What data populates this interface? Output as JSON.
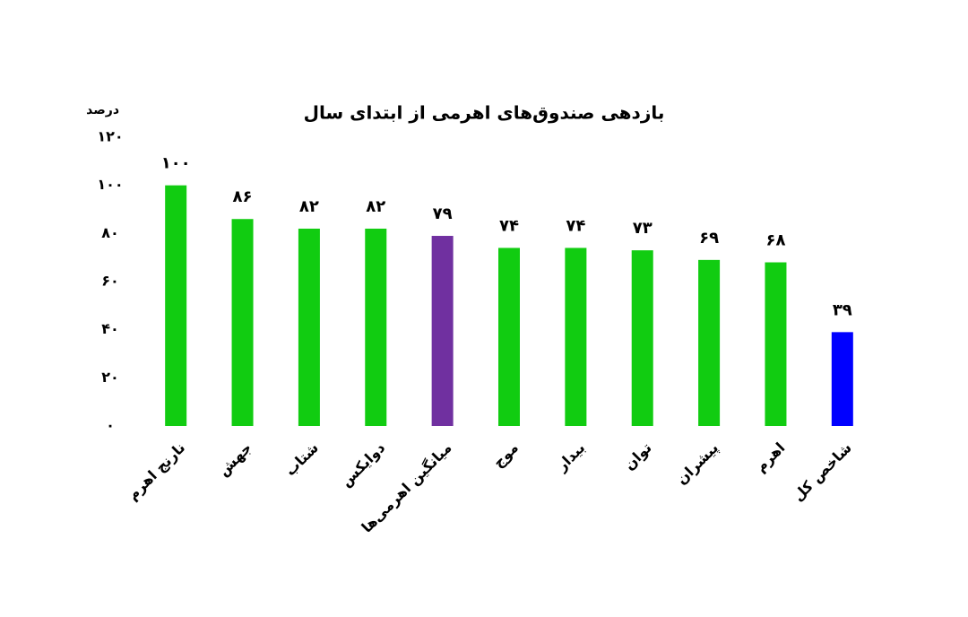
{
  "chart_data": {
    "type": "bar",
    "title": "بازدهی صندوق‌های اهرمی از ابتدای سال",
    "y_label": "درصد",
    "categories": [
      "نارنج اهرم",
      "جهش",
      "شتاب",
      "دوایکس",
      "میانگین اهرمی‌ها",
      "موج",
      "بیدار",
      "توان",
      "پیشران",
      "اهرم",
      "شاخص کل"
    ],
    "values": [
      100,
      86,
      82,
      82,
      79,
      74,
      74,
      73,
      69,
      68,
      39
    ],
    "value_labels": [
      "۱۰۰",
      "۸۶",
      "۸۲",
      "۸۲",
      "۷۹",
      "۷۴",
      "۷۴",
      "۷۳",
      "۶۹",
      "۶۸",
      "۳۹"
    ],
    "colors": [
      "#11cc11",
      "#11cc11",
      "#11cc11",
      "#11cc11",
      "#7030a0",
      "#11cc11",
      "#11cc11",
      "#11cc11",
      "#11cc11",
      "#11cc11",
      "#0000ff"
    ],
    "ylim": [
      0,
      120
    ],
    "yticks": [
      {
        "value": 0,
        "label": "۰"
      },
      {
        "value": 20,
        "label": "۲۰"
      },
      {
        "value": 40,
        "label": "۴۰"
      },
      {
        "value": 60,
        "label": "۶۰"
      },
      {
        "value": 80,
        "label": "۸۰"
      },
      {
        "value": 100,
        "label": "۱۰۰"
      },
      {
        "value": 120,
        "label": "۱۲۰"
      }
    ],
    "grid": false
  }
}
